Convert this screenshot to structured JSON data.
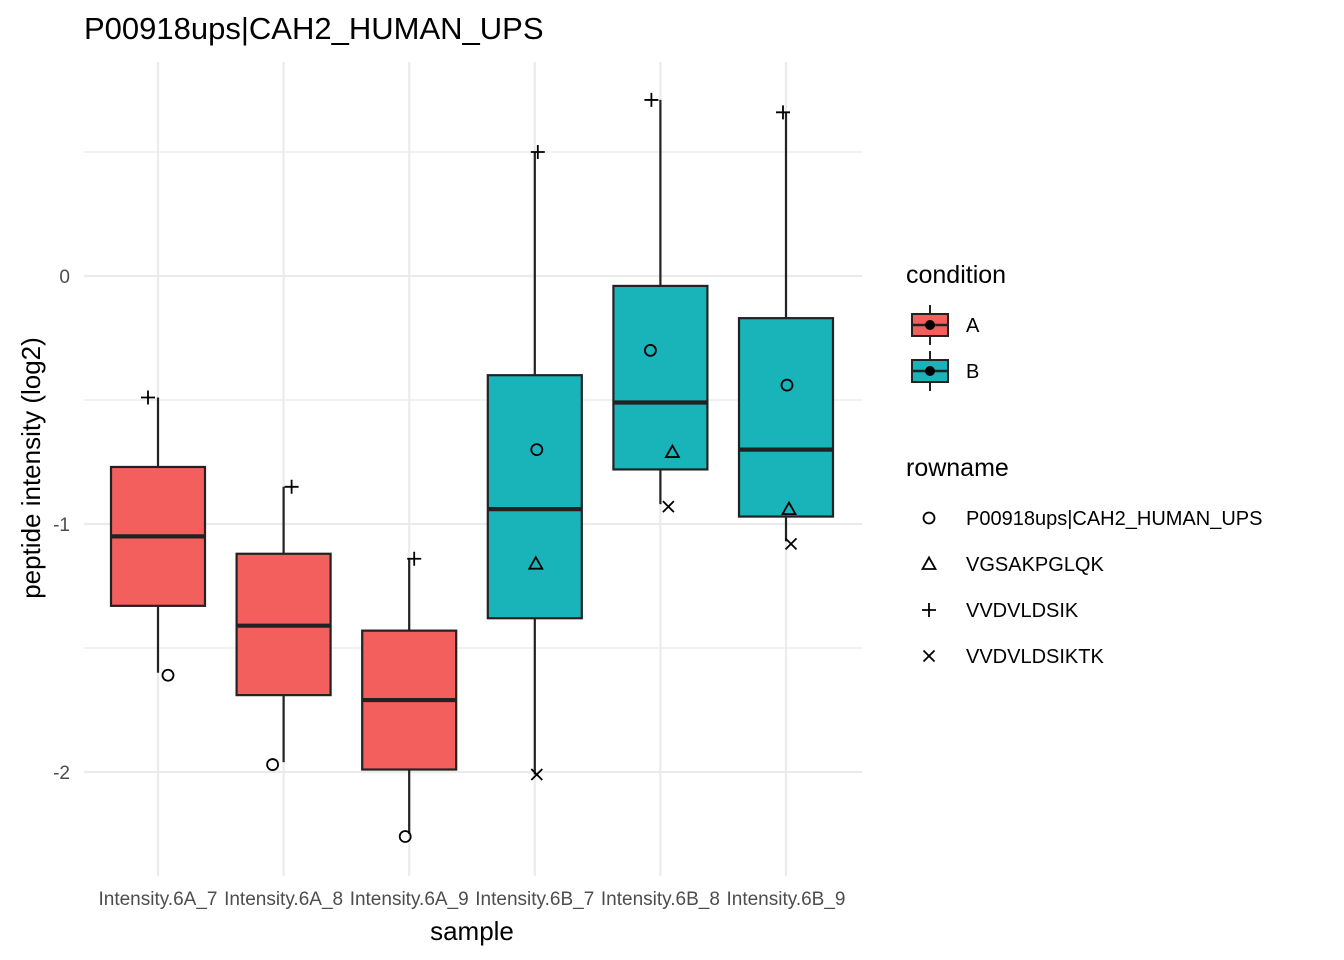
{
  "chart_data": {
    "type": "boxplot",
    "title": "P00918ups|CAH2_HUMAN_UPS",
    "xlabel": "sample",
    "ylabel": "peptide intensity (log2)",
    "categories": [
      "Intensity.6A_7",
      "Intensity.6A_8",
      "Intensity.6A_9",
      "Intensity.6B_7",
      "Intensity.6B_8",
      "Intensity.6B_9"
    ],
    "y_ticks": [
      0,
      -1,
      -2
    ],
    "y_tick_labels": [
      "0",
      "-1",
      "-2"
    ],
    "ylim": [
      -2.4,
      0.86
    ],
    "grid": true,
    "boxes": [
      {
        "category": "Intensity.6A_7",
        "condition": "A",
        "min": -1.6,
        "q1": -1.33,
        "median": -1.05,
        "q3": -0.77,
        "max": -0.49
      },
      {
        "category": "Intensity.6A_8",
        "condition": "A",
        "min": -1.96,
        "q1": -1.69,
        "median": -1.41,
        "q3": -1.12,
        "max": -0.85
      },
      {
        "category": "Intensity.6A_9",
        "condition": "A",
        "min": -2.25,
        "q1": -1.99,
        "median": -1.71,
        "q3": -1.43,
        "max": -1.14
      },
      {
        "category": "Intensity.6B_7",
        "condition": "B",
        "min": -2.01,
        "q1": -1.38,
        "median": -0.94,
        "q3": -0.4,
        "max": 0.5
      },
      {
        "category": "Intensity.6B_8",
        "condition": "B",
        "min": -0.92,
        "q1": -0.78,
        "median": -0.51,
        "q3": -0.04,
        "max": 0.71
      },
      {
        "category": "Intensity.6B_9",
        "condition": "B",
        "min": -1.07,
        "q1": -0.97,
        "median": -0.7,
        "q3": -0.17,
        "max": 0.66
      }
    ],
    "points": [
      {
        "category": "Intensity.6A_7",
        "rowname": "P00918ups|CAH2_HUMAN_UPS",
        "y": -1.61
      },
      {
        "category": "Intensity.6A_7",
        "rowname": "VVDVLDSIK",
        "y": -0.49
      },
      {
        "category": "Intensity.6A_8",
        "rowname": "P00918ups|CAH2_HUMAN_UPS",
        "y": -1.97
      },
      {
        "category": "Intensity.6A_8",
        "rowname": "VVDVLDSIK",
        "y": -0.85
      },
      {
        "category": "Intensity.6A_9",
        "rowname": "P00918ups|CAH2_HUMAN_UPS",
        "y": -2.26
      },
      {
        "category": "Intensity.6A_9",
        "rowname": "VVDVLDSIK",
        "y": -1.14
      },
      {
        "category": "Intensity.6B_7",
        "rowname": "P00918ups|CAH2_HUMAN_UPS",
        "y": -0.7
      },
      {
        "category": "Intensity.6B_7",
        "rowname": "VGSAKPGLQK",
        "y": -1.16
      },
      {
        "category": "Intensity.6B_7",
        "rowname": "VVDVLDSIK",
        "y": 0.5
      },
      {
        "category": "Intensity.6B_7",
        "rowname": "VVDVLDSIKTK",
        "y": -2.01
      },
      {
        "category": "Intensity.6B_8",
        "rowname": "P00918ups|CAH2_HUMAN_UPS",
        "y": -0.3
      },
      {
        "category": "Intensity.6B_8",
        "rowname": "VGSAKPGLQK",
        "y": -0.71
      },
      {
        "category": "Intensity.6B_8",
        "rowname": "VVDVLDSIK",
        "y": 0.71
      },
      {
        "category": "Intensity.6B_8",
        "rowname": "VVDVLDSIKTK",
        "y": -0.93
      },
      {
        "category": "Intensity.6B_9",
        "rowname": "P00918ups|CAH2_HUMAN_UPS",
        "y": -0.44
      },
      {
        "category": "Intensity.6B_9",
        "rowname": "VGSAKPGLQK",
        "y": -0.94
      },
      {
        "category": "Intensity.6B_9",
        "rowname": "VVDVLDSIK",
        "y": 0.66
      },
      {
        "category": "Intensity.6B_9",
        "rowname": "VVDVLDSIKTK",
        "y": -1.08
      }
    ],
    "legend_condition": {
      "title": "condition",
      "items": [
        {
          "label": "A",
          "color": "#F8766D"
        },
        {
          "label": "B",
          "color": "#00BFC4"
        }
      ]
    },
    "legend_rowname": {
      "title": "rowname",
      "items": [
        {
          "label": "P00918ups|CAH2_HUMAN_UPS",
          "shape": "circle"
        },
        {
          "label": "VGSAKPGLQK",
          "shape": "triangle"
        },
        {
          "label": "VVDVLDSIK",
          "shape": "plus"
        },
        {
          "label": "VVDVLDSIKTK",
          "shape": "cross"
        }
      ]
    },
    "legend_placement": "right",
    "colors": {
      "A": "#F25F5C",
      "B": "#18B4BA",
      "grid": "#EBEBEB",
      "ink": "#000000"
    }
  }
}
